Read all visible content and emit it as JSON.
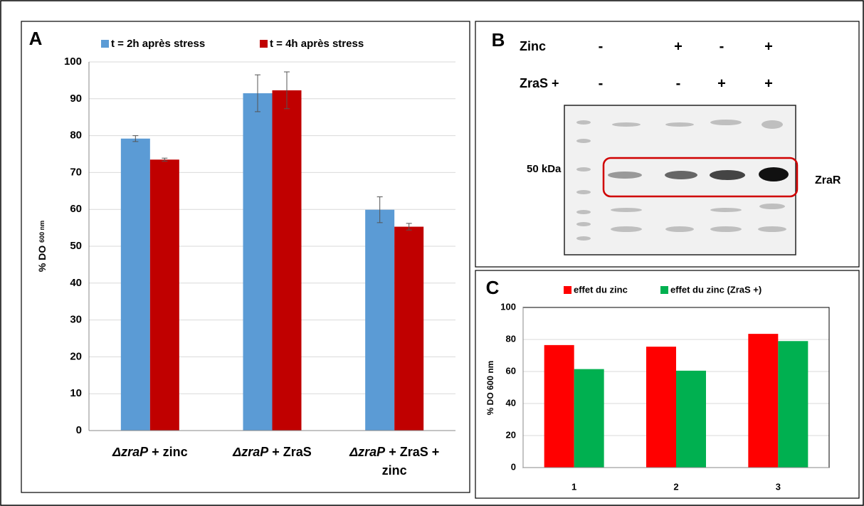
{
  "chart_data": [
    {
      "type": "bar",
      "panel": "A",
      "ylabel": "% DO 600 nm",
      "categories": [
        "ΔzraP + zinc",
        "ΔzraP + ZraS",
        "ΔzraP + ZraS + zinc"
      ],
      "series": [
        {
          "name": "t = 2h après stress",
          "color": "#5b9bd5",
          "values": [
            79.2,
            91.5,
            59.9
          ],
          "errors": [
            0.8,
            5.0,
            3.5
          ]
        },
        {
          "name": "t = 4h après stress",
          "color": "#c00000",
          "values": [
            73.5,
            92.3,
            55.3
          ],
          "errors": [
            0.4,
            5.0,
            0.9
          ]
        }
      ],
      "ylim": [
        0,
        100
      ],
      "yticks": [
        0,
        10,
        20,
        30,
        40,
        50,
        60,
        70,
        80,
        90,
        100
      ],
      "grid": true
    },
    {
      "type": "bar",
      "panel": "C",
      "ylabel": "% DO 600 nm",
      "categories": [
        "1",
        "2",
        "3"
      ],
      "series": [
        {
          "name": "effet du zinc",
          "color": "#ff0000",
          "values": [
            76.5,
            75.5,
            83.5
          ]
        },
        {
          "name": "effet du zinc (ZraS +)",
          "color": "#00b050",
          "values": [
            61.5,
            60.5,
            79.0
          ]
        }
      ],
      "ylim": [
        0,
        100
      ],
      "yticks": [
        0,
        20,
        40,
        60,
        80,
        100
      ],
      "grid": true
    }
  ],
  "blot": {
    "panel": "B",
    "rows": [
      {
        "name": "Zinc",
        "lanes": [
          "-",
          "+",
          "-",
          "+"
        ]
      },
      {
        "name": "ZraS +",
        "lanes": [
          "-",
          "-",
          "+",
          "+"
        ]
      }
    ],
    "marker": "50 kDa",
    "band": "ZraR"
  }
}
